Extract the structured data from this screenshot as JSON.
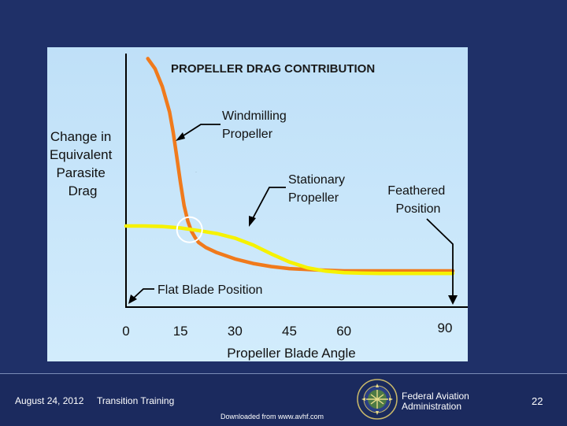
{
  "chart_data": {
    "type": "line",
    "title": "PROPELLER DRAG CONTRIBUTION",
    "ylabel_lines": [
      "Change in",
      "Equivalent",
      "Parasite",
      "Drag"
    ],
    "xlabel": "Propeller Blade Angle",
    "xlim": [
      0,
      90
    ],
    "ylim": [
      0,
      10
    ],
    "x_ticks": [
      "0",
      "15",
      "30",
      "45",
      "60",
      "90"
    ],
    "x_tick_values": [
      0,
      15,
      30,
      45,
      60,
      90
    ],
    "series": [
      {
        "name": "Windmilling Propeller",
        "color": "#f07a1c",
        "x": [
          6,
          8,
          10,
          12,
          13,
          14,
          15,
          16,
          17,
          18,
          19,
          20,
          22,
          25,
          30,
          35,
          40,
          45,
          50,
          55,
          60,
          70,
          80,
          90
        ],
        "y": [
          9.8,
          9.4,
          8.7,
          7.7,
          6.9,
          5.9,
          4.9,
          4.0,
          3.4,
          3.0,
          2.75,
          2.55,
          2.35,
          2.15,
          1.9,
          1.72,
          1.6,
          1.52,
          1.48,
          1.45,
          1.43,
          1.43,
          1.43,
          1.43
        ]
      },
      {
        "name": "Stationary Propeller",
        "color": "#f6f200",
        "x": [
          0,
          5,
          10,
          15,
          20,
          25,
          30,
          35,
          40,
          45,
          50,
          55,
          60,
          65,
          70,
          80,
          90
        ],
        "y": [
          3.2,
          3.2,
          3.18,
          3.12,
          3.02,
          2.9,
          2.72,
          2.45,
          2.1,
          1.78,
          1.55,
          1.42,
          1.36,
          1.34,
          1.33,
          1.33,
          1.33
        ]
      }
    ],
    "annotations": [
      {
        "name": "windmilling",
        "lines": [
          "Windmilling",
          "Propeller"
        ]
      },
      {
        "name": "stationary",
        "lines": [
          "Stationary",
          "Propeller"
        ]
      },
      {
        "name": "feathered",
        "lines": [
          "Feathered",
          "Position"
        ],
        "x": 90
      },
      {
        "name": "flat-blade",
        "lines": [
          "Flat Blade Position"
        ],
        "x": 0
      }
    ],
    "marker": {
      "name": "intersection-circle",
      "x": 17.5,
      "y": 3.05
    }
  },
  "footer": {
    "date": "August 24, 2012",
    "subject": "Transition Training",
    "agency_line1": "Federal Aviation",
    "agency_line2": "Administration",
    "page_number": "22",
    "download_note": "Downloaded from www.avhf.com"
  },
  "colors": {
    "background": "#1f3068",
    "footer": "#1b2a5e",
    "panel": "#c8e6fa",
    "windmilling": "#f07a1c",
    "stationary": "#f6f200"
  }
}
